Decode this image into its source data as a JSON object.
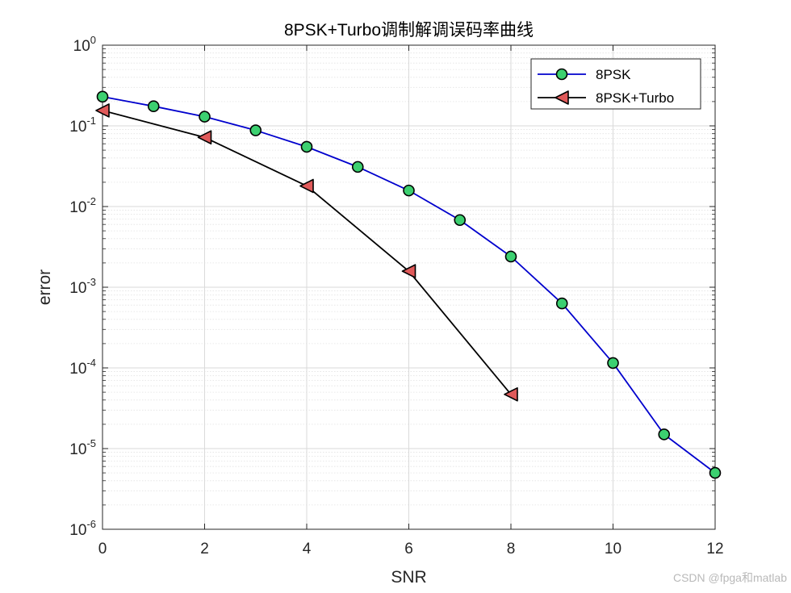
{
  "chart_data": {
    "type": "line",
    "title": "8PSK+Turbo调制解调误码率曲线",
    "xlabel": "SNR",
    "ylabel": "error",
    "xlim": [
      0,
      12
    ],
    "ylim": [
      1e-06,
      1
    ],
    "yscale": "log",
    "grid": true,
    "legend_position": "top-right",
    "x_ticks": [
      0,
      2,
      4,
      6,
      8,
      10,
      12
    ],
    "y_ticks": [
      {
        "base": "10",
        "exp": "0"
      },
      {
        "base": "10",
        "exp": "-1"
      },
      {
        "base": "10",
        "exp": "-2"
      },
      {
        "base": "10",
        "exp": "-3"
      },
      {
        "base": "10",
        "exp": "-4"
      },
      {
        "base": "10",
        "exp": "-5"
      },
      {
        "base": "10",
        "exp": "-6"
      }
    ],
    "series": [
      {
        "name": "8PSK",
        "color": "#0000CD",
        "marker": "circle",
        "marker_fill": "#3CD070",
        "x": [
          0,
          1,
          2,
          3,
          4,
          5,
          6,
          7,
          8,
          9,
          10,
          11,
          12
        ],
        "y": [
          0.23,
          0.175,
          0.13,
          0.088,
          0.055,
          0.031,
          0.0158,
          0.0068,
          0.0024,
          0.00063,
          0.000115,
          1.5e-05,
          5e-06
        ]
      },
      {
        "name": "8PSK+Turbo",
        "color": "#000000",
        "marker": "triangle-left",
        "marker_fill": "#E05A5A",
        "x": [
          0,
          2,
          4,
          6,
          8
        ],
        "y": [
          0.155,
          0.072,
          0.018,
          0.00158,
          4.7e-05
        ]
      }
    ]
  },
  "watermark": "CSDN @fpga和matlab"
}
